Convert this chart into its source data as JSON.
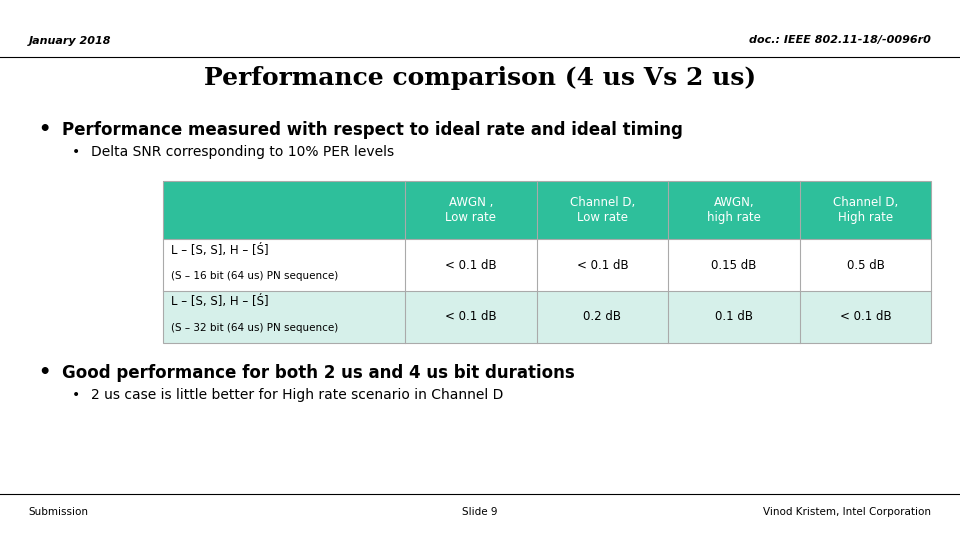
{
  "title": "Performance comparison (4 us Vs 2 us)",
  "header_left": "January 2018",
  "header_right": "doc.: IEEE 802.11-18/-0096r0",
  "footer_left": "Submission",
  "footer_center": "Slide 9",
  "footer_right": "Vinod Kristem, Intel Corporation",
  "bullet1": "Performance measured with respect to ideal rate and ideal timing",
  "sub_bullet1": "Delta SNR corresponding to 10% PER levels",
  "bullet2": "Good performance for both 2 us and 4 us bit durations",
  "sub_bullet2": "2 us case is little better for High rate scenario in Channel D",
  "table_header_bg": "#2EBF9B",
  "table_row1_bg": "#FFFFFF",
  "table_row2_bg": "#D6F0EA",
  "table_col_headers": [
    "AWGN ,\nLow rate",
    "Channel D,\nLow rate",
    "AWGN,\nhigh rate",
    "Channel D,\nHigh rate"
  ],
  "table_row1_label_line1": "L – [S, S], H – [Ś]",
  "table_row1_label_line2": "(S – 16 bit (64 us) PN sequence)",
  "table_row2_label_line1": "L – [S, S], H – [Ś]",
  "table_row2_label_line2": "(S – 32 bit (64 us) PN sequence)",
  "table_row1_values": [
    "< 0.1 dB",
    "< 0.1 dB",
    "0.15 dB",
    "0.5 dB"
  ],
  "table_row2_values": [
    "< 0.1 dB",
    "0.2 dB",
    "0.1 dB",
    "< 0.1 dB"
  ],
  "bg_color": "#FFFFFF",
  "text_color": "#000000",
  "header_underline_color": "#000000",
  "footer_line_color": "#000000"
}
